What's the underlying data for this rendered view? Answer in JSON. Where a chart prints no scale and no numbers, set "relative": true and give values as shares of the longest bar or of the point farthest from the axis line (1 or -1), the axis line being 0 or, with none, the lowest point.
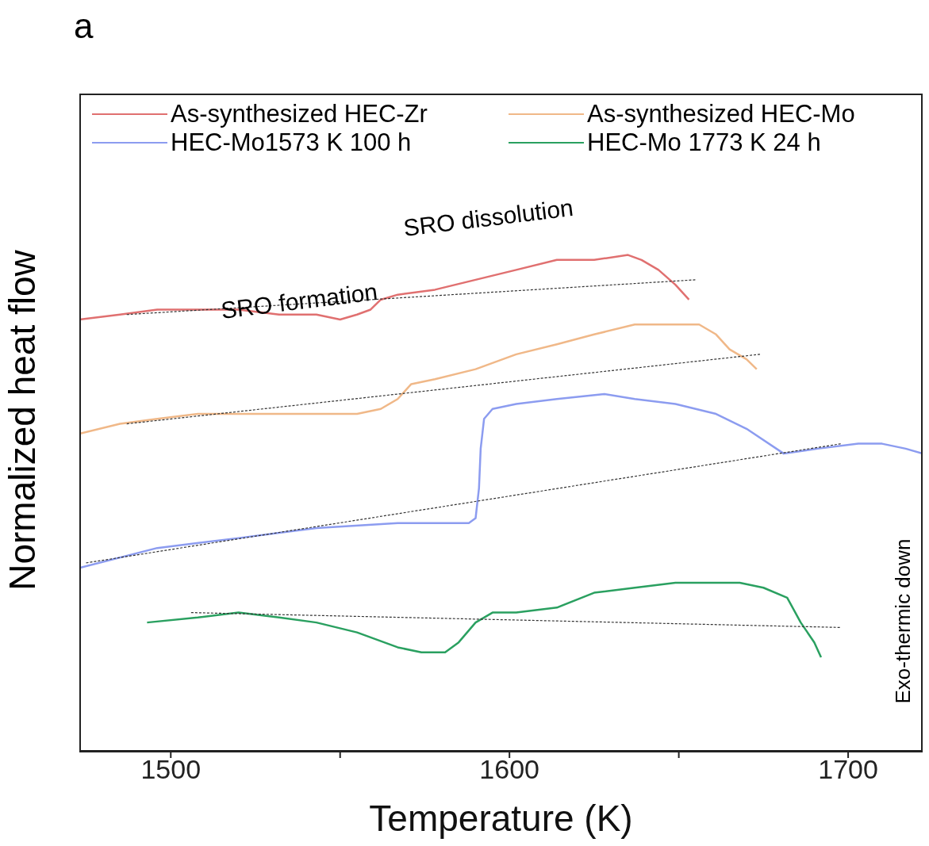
{
  "chart_data": {
    "type": "line",
    "title": "a",
    "xlabel": "Temperature (K)",
    "ylabel": "Normalized heat flow",
    "relative": true,
    "legend": "top",
    "xlim": [
      1473,
      1722
    ],
    "xticks": [
      1500,
      {
        "value": 1550,
        "label": null
      },
      1600,
      {
        "value": 1650,
        "label": null
      },
      1700
    ],
    "annotations": [
      "SRO dissolution",
      "SRO formation",
      "Exo-thermic down"
    ],
    "series": [
      {
        "name": "As-synthesized HEC-Zr",
        "color": "#e07070",
        "x": [
          1473,
          1485,
          1496,
          1508,
          1520,
          1532,
          1543,
          1550,
          1555,
          1559,
          1562,
          1567,
          1578,
          1590,
          1602,
          1614,
          1625,
          1635,
          1639,
          1644,
          1649,
          1653
        ],
        "values": [
          0.87,
          0.88,
          0.89,
          0.89,
          0.89,
          0.88,
          0.88,
          0.87,
          0.88,
          0.89,
          0.91,
          0.92,
          0.93,
          0.95,
          0.97,
          0.99,
          0.99,
          1.0,
          0.99,
          0.97,
          0.94,
          0.91
        ]
      },
      {
        "name": "As-synthesized HEC-Mo",
        "color": "#f0b888",
        "x": [
          1473,
          1485,
          1496,
          1508,
          1520,
          1532,
          1543,
          1555,
          1562,
          1567,
          1571,
          1578,
          1590,
          1602,
          1614,
          1625,
          1637,
          1649,
          1656,
          1661,
          1665,
          1670,
          1673
        ],
        "values": [
          0.64,
          0.66,
          0.67,
          0.68,
          0.68,
          0.68,
          0.68,
          0.68,
          0.69,
          0.71,
          0.74,
          0.75,
          0.77,
          0.8,
          0.82,
          0.84,
          0.86,
          0.86,
          0.86,
          0.84,
          0.81,
          0.79,
          0.77
        ]
      },
      {
        "name": "HEC-Mo1573 K 100 h",
        "color": "#8c9cf0",
        "x": [
          1473,
          1496,
          1520,
          1543,
          1567,
          1581,
          1588,
          1590,
          1591,
          1591.5,
          1592.5,
          1595,
          1602,
          1614,
          1628,
          1637,
          1649,
          1661,
          1670,
          1681,
          1691,
          1703,
          1710,
          1717,
          1722
        ],
        "values": [
          0.37,
          0.41,
          0.43,
          0.45,
          0.46,
          0.46,
          0.46,
          0.47,
          0.53,
          0.61,
          0.67,
          0.69,
          0.7,
          0.71,
          0.72,
          0.71,
          0.7,
          0.68,
          0.65,
          0.6,
          0.61,
          0.62,
          0.62,
          0.61,
          0.6
        ]
      },
      {
        "name": "HEC-Mo 1773 K 24 h",
        "color": "#2aa060",
        "x": [
          1493,
          1508,
          1520,
          1532,
          1543,
          1555,
          1567,
          1574,
          1581,
          1585,
          1590,
          1595,
          1602,
          1614,
          1625,
          1637,
          1649,
          1661,
          1668,
          1675,
          1682,
          1686,
          1690,
          1692
        ],
        "values": [
          0.26,
          0.27,
          0.28,
          0.27,
          0.26,
          0.24,
          0.21,
          0.2,
          0.2,
          0.22,
          0.26,
          0.28,
          0.28,
          0.29,
          0.32,
          0.33,
          0.34,
          0.34,
          0.34,
          0.33,
          0.31,
          0.26,
          0.22,
          0.19
        ]
      },
      {
        "type": "line",
        "color": "#333333",
        "line_style": "dashed",
        "x": [
          1487,
          1655
        ],
        "values": [
          0.88,
          0.95
        ]
      },
      {
        "type": "line",
        "color": "#333333",
        "line_style": "dashed",
        "x": [
          1487,
          1674
        ],
        "values": [
          0.66,
          0.8
        ]
      },
      {
        "type": "line",
        "color": "#333333",
        "line_style": "dashed",
        "x": [
          1475,
          1698
        ],
        "values": [
          0.38,
          0.62
        ]
      },
      {
        "type": "line",
        "color": "#333333",
        "line_style": "dashed",
        "x": [
          1506,
          1698
        ],
        "values": [
          0.28,
          0.25
        ]
      }
    ]
  }
}
